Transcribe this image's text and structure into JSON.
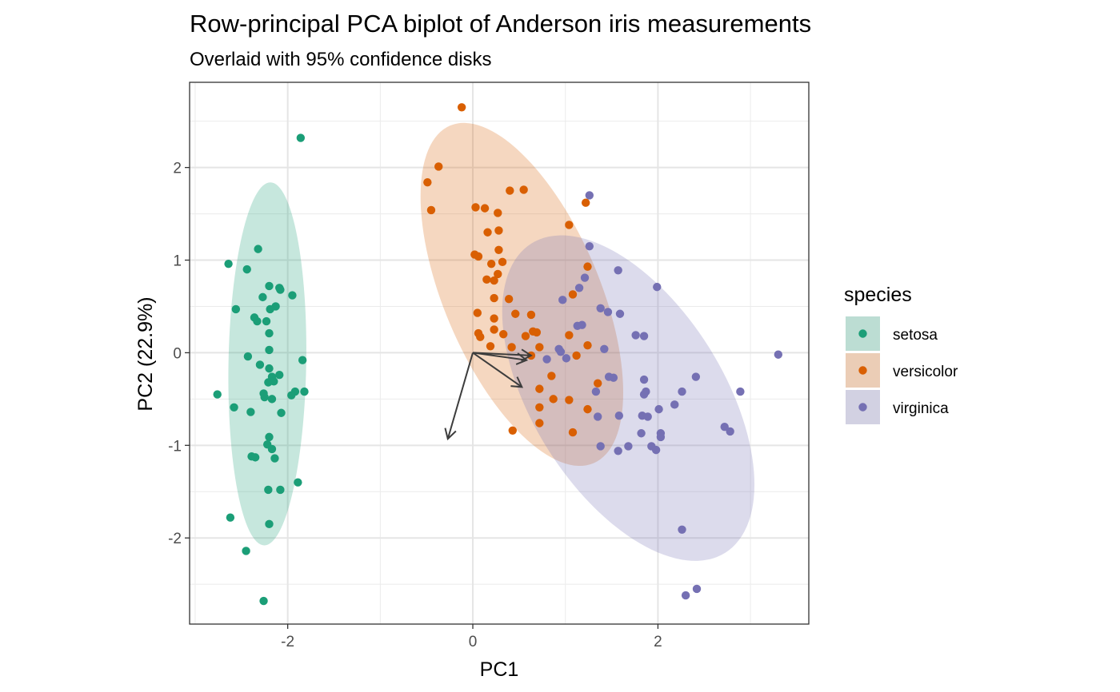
{
  "chart_data": {
    "type": "scatter",
    "title": "Row-principal PCA biplot of Anderson iris measurements",
    "subtitle": "Overlaid with 95% confidence disks",
    "xlabel": "PC1",
    "ylabel": "PC2 (22.9%)",
    "xlim": [
      -3.06,
      3.63
    ],
    "ylim": [
      -2.93,
      2.92
    ],
    "x_ticks": [
      -2,
      0,
      2
    ],
    "y_ticks": [
      -2,
      -1,
      0,
      1,
      2
    ],
    "x_tick_labels": [
      "-2",
      "0",
      "2"
    ],
    "y_tick_labels": [
      "-2",
      "-1",
      "0",
      "1",
      "2"
    ],
    "grid": true,
    "legend_title": "species",
    "legend_position": "right",
    "series": [
      {
        "name": "setosa",
        "color": "#1b9e77",
        "points": [
          [
            -1.86,
            2.32
          ],
          [
            -2.64,
            0.96
          ],
          [
            -2.32,
            1.12
          ],
          [
            -2.44,
            0.9
          ],
          [
            -2.2,
            0.72
          ],
          [
            -2.09,
            0.7
          ],
          [
            -2.08,
            0.68
          ],
          [
            -1.95,
            0.62
          ],
          [
            -2.27,
            0.6
          ],
          [
            -2.13,
            0.5
          ],
          [
            -2.19,
            0.47
          ],
          [
            -2.56,
            0.47
          ],
          [
            -2.36,
            0.38
          ],
          [
            -2.33,
            0.34
          ],
          [
            -2.23,
            0.34
          ],
          [
            -2.2,
            0.21
          ],
          [
            -2.2,
            0.03
          ],
          [
            -2.43,
            -0.04
          ],
          [
            -1.84,
            -0.08
          ],
          [
            -2.3,
            -0.13
          ],
          [
            -2.2,
            -0.17
          ],
          [
            -2.09,
            -0.24
          ],
          [
            -2.17,
            -0.26
          ],
          [
            -2.21,
            -0.32
          ],
          [
            -2.15,
            -0.31
          ],
          [
            -1.92,
            -0.42
          ],
          [
            -1.82,
            -0.42
          ],
          [
            -2.76,
            -0.45
          ],
          [
            -2.26,
            -0.44
          ],
          [
            -2.25,
            -0.48
          ],
          [
            -2.17,
            -0.5
          ],
          [
            -1.96,
            -0.46
          ],
          [
            -2.58,
            -0.59
          ],
          [
            -2.4,
            -0.64
          ],
          [
            -2.07,
            -0.65
          ],
          [
            -2.2,
            -0.91
          ],
          [
            -2.22,
            -0.99
          ],
          [
            -2.17,
            -1.04
          ],
          [
            -2.39,
            -1.12
          ],
          [
            -2.35,
            -1.13
          ],
          [
            -2.14,
            -1.14
          ],
          [
            -1.89,
            -1.4
          ],
          [
            -2.21,
            -1.48
          ],
          [
            -2.08,
            -1.48
          ],
          [
            -2.62,
            -1.78
          ],
          [
            -2.2,
            -1.85
          ],
          [
            -2.45,
            -2.14
          ],
          [
            -2.26,
            -2.68
          ]
        ]
      },
      {
        "name": "versicolor",
        "color": "#d95f02",
        "points": [
          [
            -0.12,
            2.65
          ],
          [
            -0.37,
            2.01
          ],
          [
            -0.49,
            1.84
          ],
          [
            -0.45,
            1.54
          ],
          [
            0.4,
            1.75
          ],
          [
            0.55,
            1.76
          ],
          [
            0.03,
            1.57
          ],
          [
            0.13,
            1.56
          ],
          [
            0.27,
            1.51
          ],
          [
            1.22,
            1.62
          ],
          [
            0.28,
            1.32
          ],
          [
            0.16,
            1.3
          ],
          [
            1.04,
            1.38
          ],
          [
            0.06,
            1.04
          ],
          [
            0.02,
            1.06
          ],
          [
            0.28,
            1.11
          ],
          [
            0.32,
            0.98
          ],
          [
            0.2,
            0.96
          ],
          [
            1.24,
            0.93
          ],
          [
            0.27,
            0.85
          ],
          [
            0.15,
            0.79
          ],
          [
            0.23,
            0.78
          ],
          [
            0.05,
            0.43
          ],
          [
            0.23,
            0.59
          ],
          [
            0.39,
            0.58
          ],
          [
            1.08,
            0.63
          ],
          [
            0.23,
            0.37
          ],
          [
            0.46,
            0.42
          ],
          [
            0.63,
            0.41
          ],
          [
            0.23,
            0.25
          ],
          [
            0.06,
            0.21
          ],
          [
            0.08,
            0.17
          ],
          [
            0.33,
            0.2
          ],
          [
            0.57,
            0.18
          ],
          [
            0.65,
            0.23
          ],
          [
            0.69,
            0.22
          ],
          [
            1.04,
            0.19
          ],
          [
            0.19,
            0.07
          ],
          [
            0.42,
            0.06
          ],
          [
            0.72,
            0.06
          ],
          [
            1.24,
            0.08
          ],
          [
            0.63,
            -0.03
          ],
          [
            1.12,
            -0.03
          ],
          [
            0.85,
            -0.25
          ],
          [
            1.35,
            -0.33
          ],
          [
            0.72,
            -0.39
          ],
          [
            0.87,
            -0.5
          ],
          [
            1.04,
            -0.51
          ],
          [
            0.72,
            -0.59
          ],
          [
            1.24,
            -0.61
          ],
          [
            0.72,
            -0.76
          ],
          [
            1.08,
            -0.86
          ],
          [
            0.43,
            -0.84
          ]
        ]
      },
      {
        "name": "virginica",
        "color": "#7570b3",
        "points": [
          [
            1.26,
            1.7
          ],
          [
            1.26,
            1.15
          ],
          [
            1.57,
            0.89
          ],
          [
            1.21,
            0.81
          ],
          [
            1.15,
            0.7
          ],
          [
            1.99,
            0.71
          ],
          [
            0.97,
            0.57
          ],
          [
            1.38,
            0.48
          ],
          [
            1.46,
            0.44
          ],
          [
            1.59,
            0.42
          ],
          [
            1.13,
            0.29
          ],
          [
            1.18,
            0.3
          ],
          [
            1.76,
            0.19
          ],
          [
            1.85,
            0.18
          ],
          [
            0.8,
            -0.07
          ],
          [
            0.93,
            0.04
          ],
          [
            0.95,
            0.01
          ],
          [
            1.01,
            -0.06
          ],
          [
            1.42,
            0.04
          ],
          [
            1.47,
            -0.26
          ],
          [
            1.52,
            -0.27
          ],
          [
            1.85,
            -0.29
          ],
          [
            1.87,
            -0.42
          ],
          [
            1.85,
            -0.45
          ],
          [
            2.41,
            -0.26
          ],
          [
            2.26,
            -0.42
          ],
          [
            2.89,
            -0.42
          ],
          [
            3.3,
            -0.02
          ],
          [
            1.33,
            -0.42
          ],
          [
            1.35,
            -0.69
          ],
          [
            1.58,
            -0.68
          ],
          [
            1.83,
            -0.68
          ],
          [
            1.89,
            -0.69
          ],
          [
            2.01,
            -0.61
          ],
          [
            2.18,
            -0.56
          ],
          [
            2.03,
            -0.87
          ],
          [
            2.03,
            -0.91
          ],
          [
            1.82,
            -0.87
          ],
          [
            1.93,
            -1.01
          ],
          [
            1.98,
            -1.05
          ],
          [
            1.68,
            -1.01
          ],
          [
            1.57,
            -1.06
          ],
          [
            1.38,
            -1.01
          ],
          [
            2.72,
            -0.8
          ],
          [
            2.78,
            -0.85
          ],
          [
            2.26,
            -1.91
          ],
          [
            2.3,
            -2.62
          ],
          [
            2.42,
            -2.55
          ]
        ]
      }
    ],
    "ellipses": [
      {
        "series": "setosa",
        "center": [
          -2.22,
          -0.12
        ],
        "semi_axes": [
          0.42,
          1.96
        ],
        "angle_deg": 1,
        "opacity": 0.25
      },
      {
        "series": "versicolor",
        "center": [
          0.53,
          0.63
        ],
        "semi_axes": [
          0.84,
          1.98
        ],
        "angle_deg": -23,
        "opacity": 0.25
      },
      {
        "series": "virginica",
        "center": [
          1.68,
          -0.49
        ],
        "semi_axes": [
          1.03,
          1.97
        ],
        "angle_deg": -32,
        "opacity": 0.25
      }
    ],
    "vectors": {
      "color": "#3d3d3d",
      "origin": [
        0,
        0
      ],
      "endpoints": [
        [
          0.63,
          -0.03
        ],
        [
          0.58,
          -0.08
        ],
        [
          0.53,
          -0.37
        ],
        [
          -0.27,
          -0.93
        ]
      ]
    }
  }
}
